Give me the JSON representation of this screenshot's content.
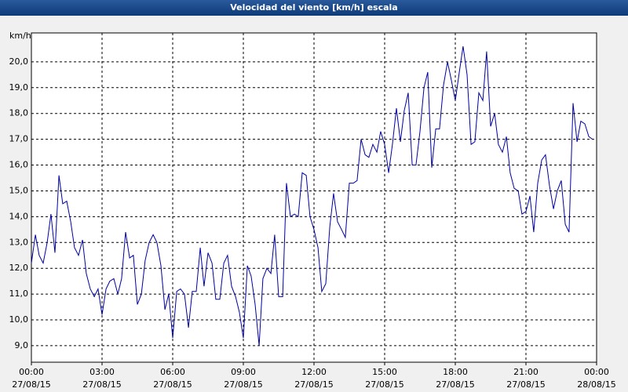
{
  "chart_data": {
    "type": "line",
    "title": "Velocidad del viento [km/h] escala",
    "y_label": "km/h",
    "xlim": [
      0,
      24
    ],
    "ylim": [
      8.36,
      21.12
    ],
    "xticks": [
      {
        "value": 0,
        "label": "00:00"
      },
      {
        "value": 3,
        "label": "03:00"
      },
      {
        "value": 6,
        "label": "06:00"
      },
      {
        "value": 9,
        "label": "09:00"
      },
      {
        "value": 12,
        "label": "12:00"
      },
      {
        "value": 15,
        "label": "15:00"
      },
      {
        "value": 18,
        "label": "18:00"
      },
      {
        "value": 21,
        "label": "21:00"
      },
      {
        "value": 24,
        "label": "00:00"
      }
    ],
    "xtick_dates": [
      "27/08/15",
      "27/08/15",
      "27/08/15",
      "27/08/15",
      "27/08/15",
      "27/08/15",
      "27/08/15",
      "27/08/15",
      "28/08/15"
    ],
    "yticks": [
      {
        "value": 9,
        "label": "9,0"
      },
      {
        "value": 10,
        "label": "10,0"
      },
      {
        "value": 11,
        "label": "11,0"
      },
      {
        "value": 12,
        "label": "12,0"
      },
      {
        "value": 13,
        "label": "13,0"
      },
      {
        "value": 14,
        "label": "14,0"
      },
      {
        "value": 15,
        "label": "15,0"
      },
      {
        "value": 16,
        "label": "16,0"
      },
      {
        "value": 17,
        "label": "17,0"
      },
      {
        "value": 18,
        "label": "18,0"
      },
      {
        "value": 19,
        "label": "19,0"
      },
      {
        "value": 20,
        "label": "20,0"
      }
    ],
    "grid": true,
    "color": "#0000a0",
    "x": [
      0,
      0.17,
      0.33,
      0.5,
      0.67,
      0.83,
      1,
      1.17,
      1.33,
      1.5,
      1.67,
      1.83,
      2,
      2.17,
      2.33,
      2.5,
      2.67,
      2.83,
      3,
      3.17,
      3.33,
      3.5,
      3.67,
      3.83,
      4,
      4.17,
      4.33,
      4.5,
      4.67,
      4.83,
      5,
      5.17,
      5.33,
      5.5,
      5.67,
      5.83,
      6,
      6.17,
      6.33,
      6.5,
      6.67,
      6.83,
      7,
      7.17,
      7.33,
      7.5,
      7.67,
      7.83,
      8,
      8.17,
      8.33,
      8.5,
      8.67,
      8.83,
      9,
      9.17,
      9.33,
      9.5,
      9.67,
      9.83,
      10,
      10.17,
      10.33,
      10.5,
      10.67,
      10.83,
      11,
      11.17,
      11.33,
      11.5,
      11.67,
      11.83,
      12,
      12.17,
      12.33,
      12.5,
      12.67,
      12.83,
      13,
      13.17,
      13.33,
      13.5,
      13.67,
      13.83,
      14,
      14.17,
      14.33,
      14.5,
      14.67,
      14.83,
      15,
      15.17,
      15.33,
      15.5,
      15.67,
      15.83,
      16,
      16.17,
      16.33,
      16.5,
      16.67,
      16.83,
      17,
      17.17,
      17.33,
      17.5,
      17.67,
      17.83,
      18,
      18.17,
      18.33,
      18.5,
      18.67,
      18.83,
      19,
      19.17,
      19.33,
      19.5,
      19.67,
      19.83,
      20,
      20.17,
      20.33,
      20.5,
      20.67,
      20.83,
      21,
      21.17,
      21.33,
      21.5,
      21.67,
      21.83,
      22,
      22.17,
      22.33,
      22.5,
      22.67,
      22.83,
      23,
      23.17,
      23.33,
      23.5,
      23.67,
      23.83
    ],
    "values": [
      12.2,
      13.3,
      12.5,
      12.2,
      13.0,
      14.1,
      12.6,
      15.6,
      14.5,
      14.6,
      13.8,
      12.8,
      12.5,
      13.1,
      11.8,
      11.2,
      10.9,
      11.2,
      10.2,
      11.2,
      11.5,
      11.6,
      11.0,
      11.6,
      13.4,
      12.4,
      12.5,
      10.6,
      11.0,
      12.3,
      13.0,
      13.3,
      13.0,
      12.1,
      10.4,
      11.0,
      9.3,
      11.1,
      11.2,
      11.0,
      9.7,
      11.1,
      11.1,
      12.8,
      11.3,
      12.6,
      12.2,
      10.8,
      10.8,
      12.2,
      12.5,
      11.3,
      10.9,
      10.3,
      9.3,
      12.1,
      11.7,
      10.6,
      9.0,
      11.6,
      12.0,
      11.8,
      13.3,
      10.9,
      10.9,
      15.3,
      14.0,
      14.1,
      14.0,
      15.7,
      15.6,
      14.0,
      13.5,
      12.8,
      11.1,
      11.4,
      13.6,
      14.9,
      13.8,
      13.5,
      13.2,
      15.3,
      15.3,
      15.4,
      17.0,
      16.4,
      16.3,
      16.8,
      16.5,
      17.3,
      16.8,
      15.7,
      16.8,
      18.2,
      16.9,
      18.1,
      18.8,
      16.0,
      16.0,
      17.3,
      19.0,
      19.6,
      15.9,
      17.4,
      17.4,
      19.1,
      20.0,
      19.3,
      18.5,
      19.6,
      20.6,
      19.5,
      16.8,
      16.9,
      18.8,
      18.5,
      20.4,
      17.5,
      18.0,
      16.8,
      16.5,
      17.1,
      15.7,
      15.1,
      15.0,
      14.1,
      14.2,
      14.8,
      13.4,
      15.3,
      16.2,
      16.4,
      15.2,
      14.3,
      15.0,
      15.4,
      13.7,
      13.4,
      18.4,
      16.9,
      17.7,
      17.6,
      17.1,
      17.0
    ]
  }
}
